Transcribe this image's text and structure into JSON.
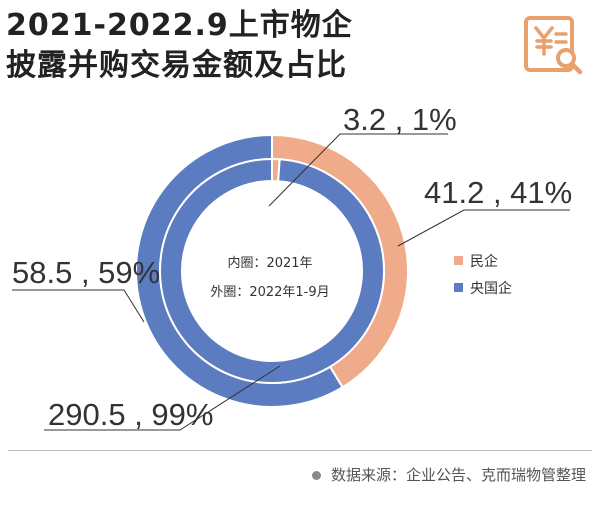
{
  "title": {
    "line1": "2021-2022.9上市物企",
    "line2": "披露并购交易金额及占比"
  },
  "logo": {
    "icon": "yuan-receipt-search-icon",
    "color": "#E8A06E"
  },
  "center_note": {
    "line1": "内圈：2021年",
    "line2": "外圈：2022年1-9月"
  },
  "legend": [
    {
      "label": "民企",
      "color": "#F0AC8A"
    },
    {
      "label": "央国企",
      "color": "#5B7CC0"
    }
  ],
  "source": "数据来源：企业公告、克而瑞物管整理",
  "chart_data": {
    "type": "pie",
    "subtype": "donut",
    "categories": [
      "民企",
      "央国企"
    ],
    "series": [
      {
        "name": "内圈：2021年",
        "values": [
          3.2,
          290.5
        ],
        "percents": [
          1,
          99
        ]
      },
      {
        "name": "外圈：2022年1-9月",
        "values": [
          41.2,
          58.5
        ],
        "percents": [
          41,
          59
        ]
      }
    ],
    "data_labels": [
      "3.2 , 1%",
      "290.5 , 99%",
      "41.2 , 41%",
      "58.5 , 59%"
    ],
    "colors": {
      "民企": "#F0AC8A",
      "央国企": "#5B7CC0"
    },
    "legend_position": "right"
  }
}
